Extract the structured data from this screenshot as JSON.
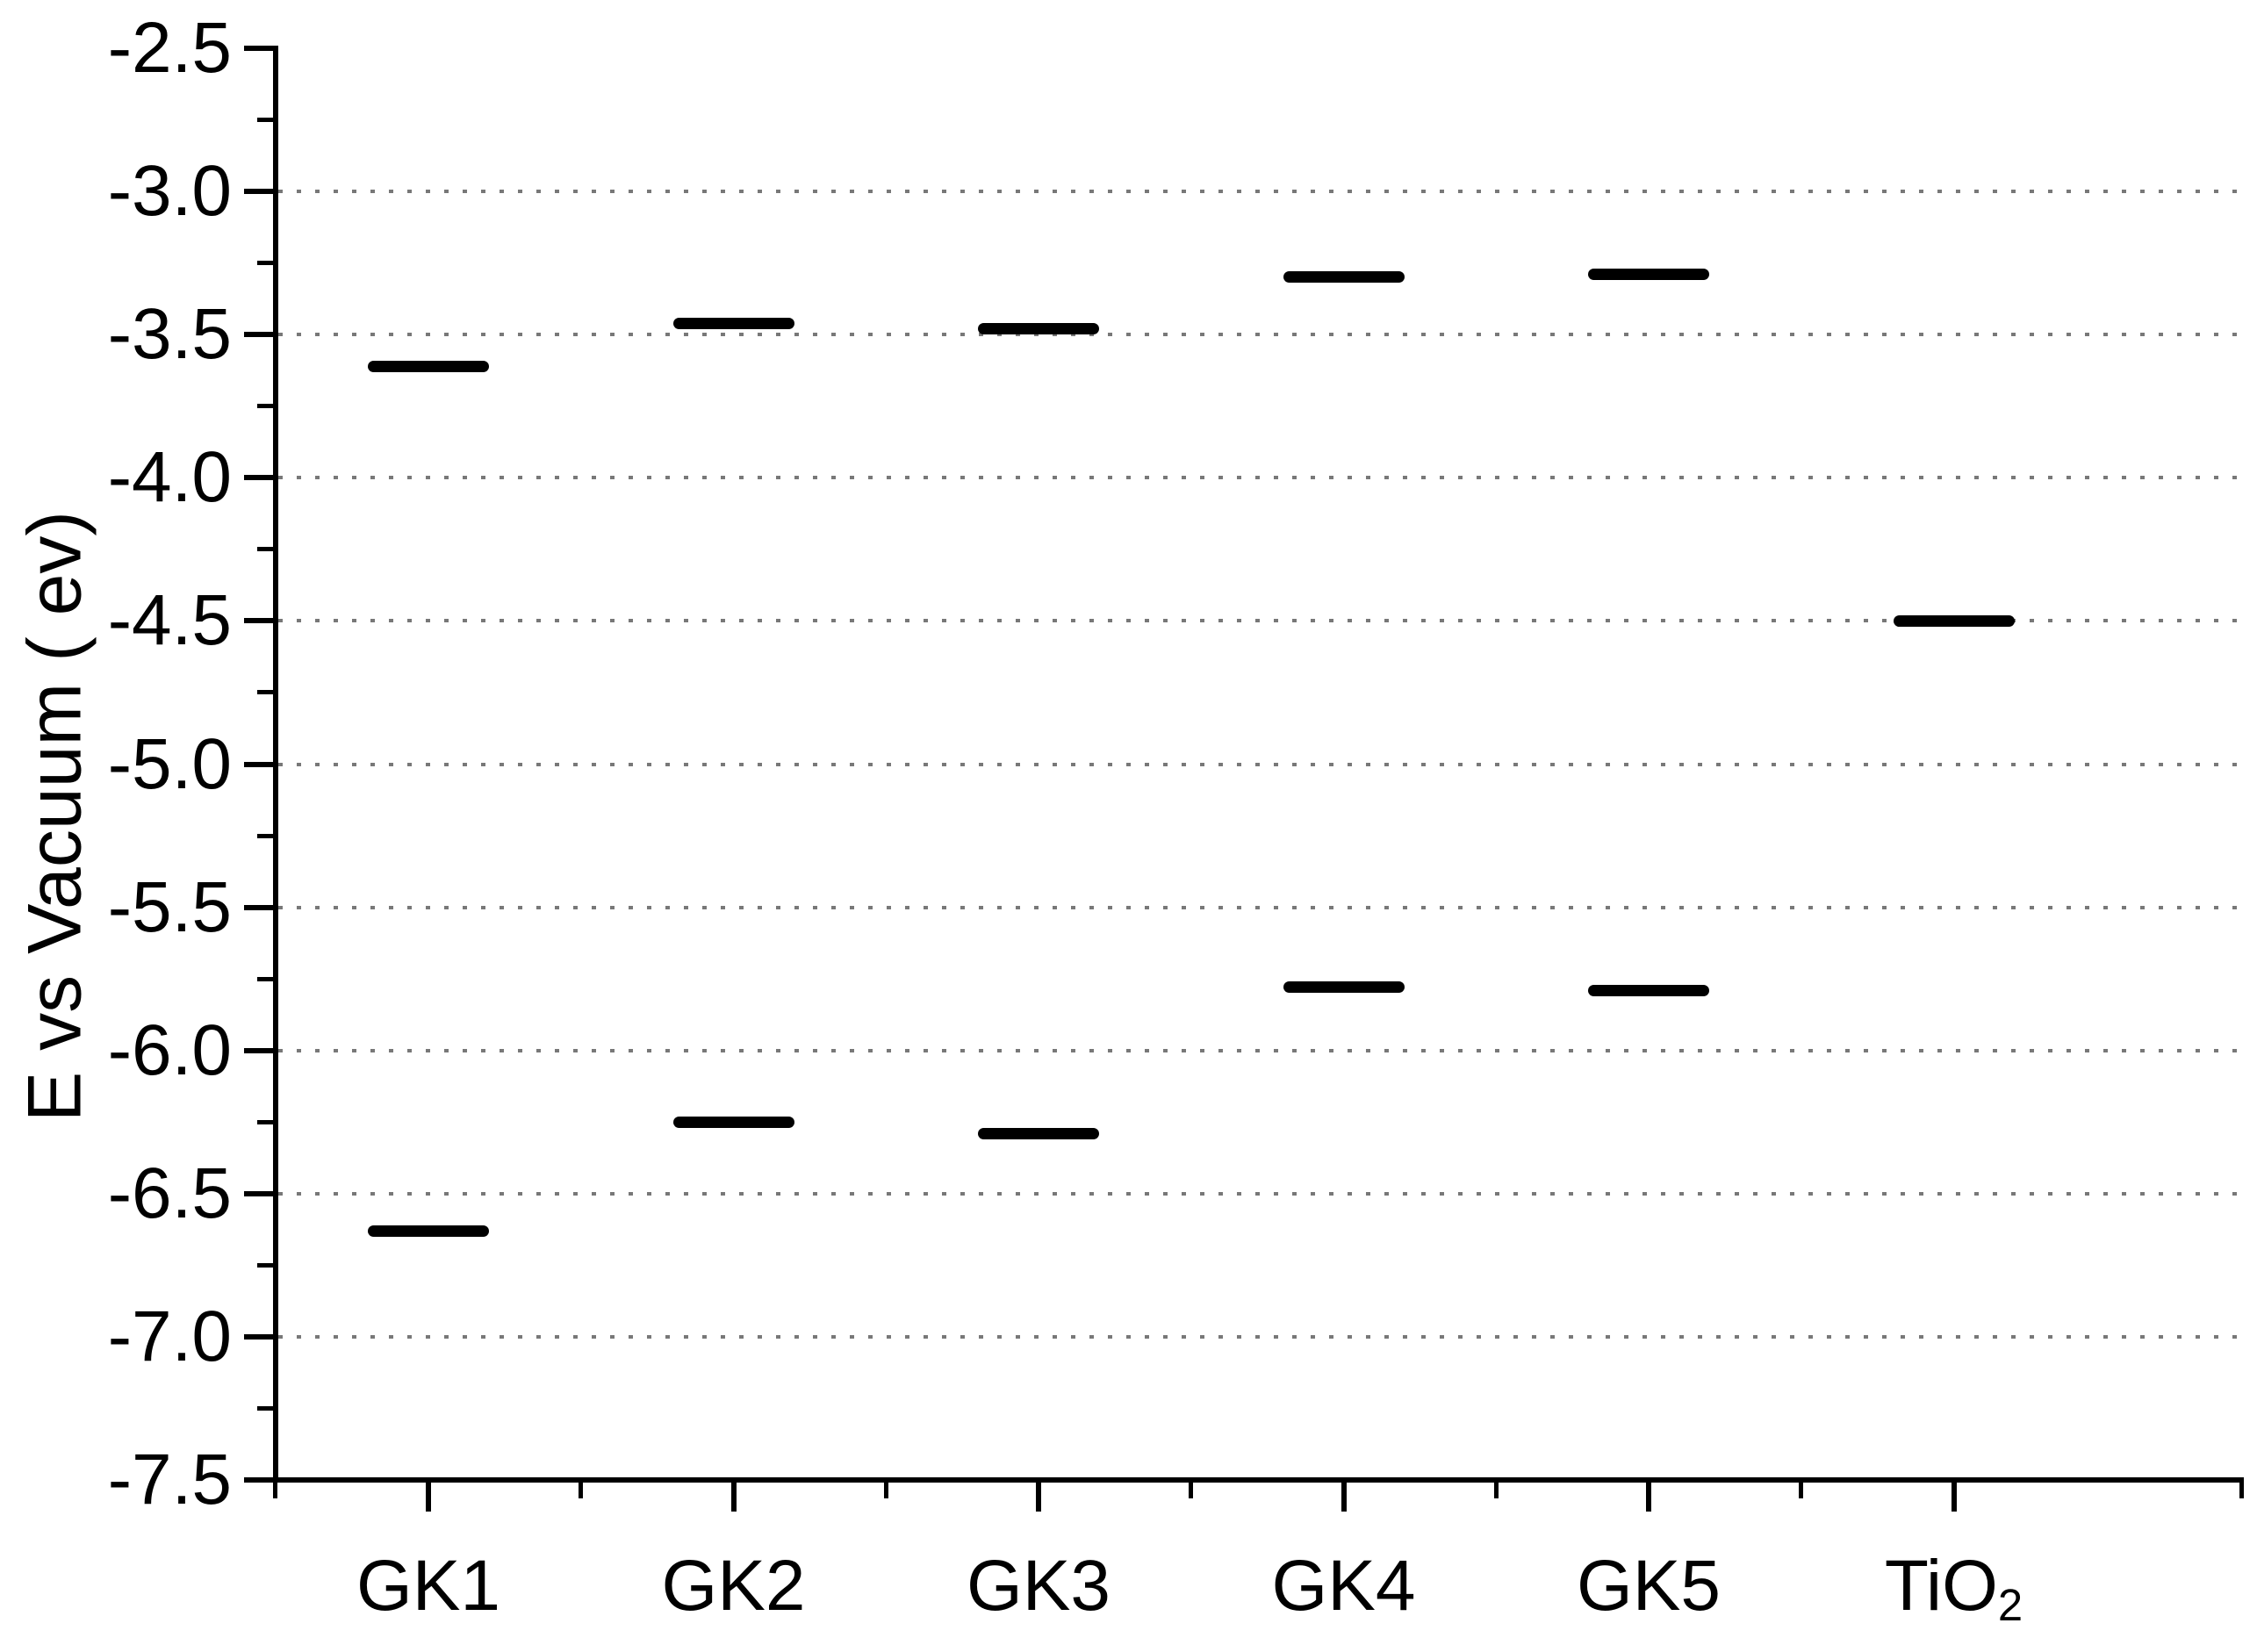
{
  "chart_data": {
    "type": "scatter",
    "subtype": "energy-level-diagram",
    "marker": "horizontal-line-segment",
    "title": "",
    "xlabel": "",
    "ylabel": "E vs Vacuum ( ev)",
    "ylim": [
      -7.5,
      -2.5
    ],
    "grid": "dotted-horizontal",
    "legend": "none",
    "yticks": [
      {
        "value": -2.5,
        "label": "-2.5"
      },
      {
        "value": -3.0,
        "label": "-3.0"
      },
      {
        "value": -3.5,
        "label": "-3.5"
      },
      {
        "value": -4.0,
        "label": "-4.0"
      },
      {
        "value": -4.5,
        "label": "-4.5"
      },
      {
        "value": -5.0,
        "label": "-5.0"
      },
      {
        "value": -5.5,
        "label": "-5.5"
      },
      {
        "value": -6.0,
        "label": "-6.0"
      },
      {
        "value": -6.5,
        "label": "-6.5"
      },
      {
        "value": -7.0,
        "label": "-7.0"
      },
      {
        "value": -7.5,
        "label": "-7.5"
      }
    ],
    "gridline_values": [
      -3.0,
      -3.5,
      -4.0,
      -4.5,
      -5.0,
      -5.5,
      -6.0,
      -6.5,
      -7.0
    ],
    "categories": [
      {
        "label": "GK1",
        "sub": ""
      },
      {
        "label": "GK2",
        "sub": ""
      },
      {
        "label": "GK3",
        "sub": ""
      },
      {
        "label": "GK4",
        "sub": ""
      },
      {
        "label": "GK5",
        "sub": ""
      },
      {
        "label": "TiO",
        "sub": "2"
      }
    ],
    "levels_ev": [
      [
        -3.61,
        -6.63
      ],
      [
        -3.46,
        -6.25
      ],
      [
        -3.48,
        -6.29
      ],
      [
        -3.3,
        -5.78
      ],
      [
        -3.29,
        -5.79
      ],
      [
        -4.5
      ]
    ],
    "colors": {
      "level": "#000000",
      "axis": "#000000",
      "text": "#000000",
      "grid": "#787878",
      "background": "#ffffff"
    }
  }
}
